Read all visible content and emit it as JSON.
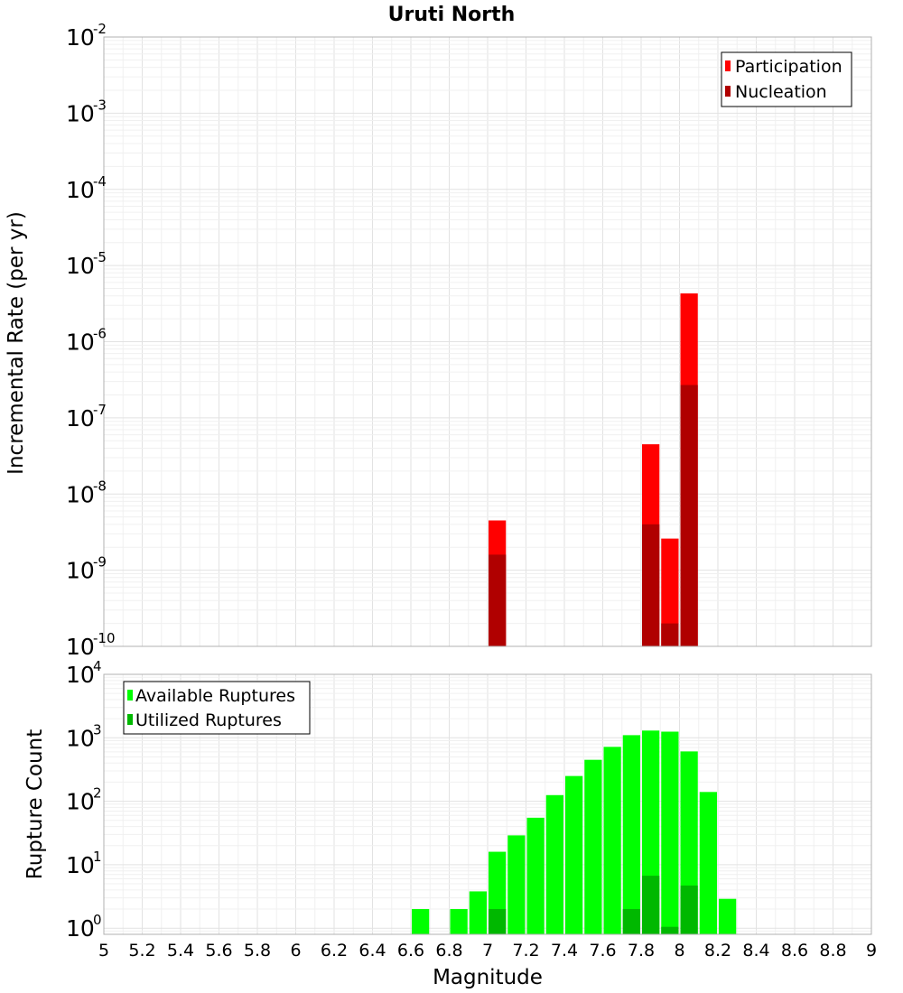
{
  "chart_data": [
    {
      "type": "bar",
      "panel": "top",
      "title": "Uruti North",
      "ylabel": "Incremental Rate (per yr)",
      "yscale": "log",
      "ylim": [
        1e-10,
        0.01
      ],
      "xlim": [
        5,
        9
      ],
      "bar_width": 0.1,
      "grid": true,
      "legend_position": "top-right",
      "legend": [
        "Participation",
        "Nucleation"
      ],
      "series": [
        {
          "name": "Participation",
          "color": "#ff0000",
          "x": [
            7.05,
            7.85,
            7.95,
            8.05
          ],
          "values": [
            4.5e-09,
            4.5e-08,
            2.6e-09,
            4.3e-06
          ]
        },
        {
          "name": "Nucleation",
          "color": "#b00000",
          "x": [
            7.05,
            7.85,
            7.95,
            8.05
          ],
          "values": [
            1.6e-09,
            4e-09,
            2e-10,
            2.7e-07
          ]
        }
      ],
      "yticks": [
        {
          "base": "10",
          "exp": "-10"
        },
        {
          "base": "10",
          "exp": "-9"
        },
        {
          "base": "10",
          "exp": "-8"
        },
        {
          "base": "10",
          "exp": "-7"
        },
        {
          "base": "10",
          "exp": "-6"
        },
        {
          "base": "10",
          "exp": "-5"
        },
        {
          "base": "10",
          "exp": "-4"
        },
        {
          "base": "10",
          "exp": "-3"
        },
        {
          "base": "10",
          "exp": "-2"
        }
      ]
    },
    {
      "type": "bar",
      "panel": "bottom",
      "ylabel": "Rupture Count",
      "xlabel": "Magnitude",
      "yscale": "log",
      "ylim": [
        0.8,
        10000
      ],
      "xlim": [
        5,
        9
      ],
      "bar_width": 0.1,
      "grid": true,
      "legend_position": "top-left",
      "legend": [
        "Available Ruptures",
        "Utilized Ruptures"
      ],
      "series": [
        {
          "name": "Available Ruptures",
          "color": "#00ff00",
          "x": [
            6.65,
            6.85,
            6.95,
            7.05,
            7.15,
            7.25,
            7.35,
            7.45,
            7.55,
            7.65,
            7.75,
            7.85,
            7.95,
            8.05,
            8.15,
            8.25
          ],
          "values": [
            2,
            2,
            3.8,
            16,
            29,
            55,
            125,
            250,
            450,
            720,
            1100,
            1300,
            1250,
            610,
            140,
            2.9
          ]
        },
        {
          "name": "Utilized Ruptures",
          "color": "#00b800",
          "x": [
            7.05,
            7.75,
            7.85,
            7.95,
            8.05
          ],
          "values": [
            2,
            2,
            6.7,
            1.05,
            4.7
          ]
        }
      ],
      "yticks": [
        {
          "base": "10",
          "exp": "0"
        },
        {
          "base": "10",
          "exp": "1"
        },
        {
          "base": "10",
          "exp": "2"
        },
        {
          "base": "10",
          "exp": "3"
        },
        {
          "base": "10",
          "exp": "4"
        }
      ],
      "xticks": [
        "5",
        "5.2",
        "5.4",
        "5.6",
        "5.8",
        "6",
        "6.2",
        "6.4",
        "6.6",
        "6.8",
        "7",
        "7.2",
        "7.4",
        "7.6",
        "7.8",
        "8",
        "8.2",
        "8.4",
        "8.6",
        "8.8",
        "9"
      ]
    }
  ]
}
